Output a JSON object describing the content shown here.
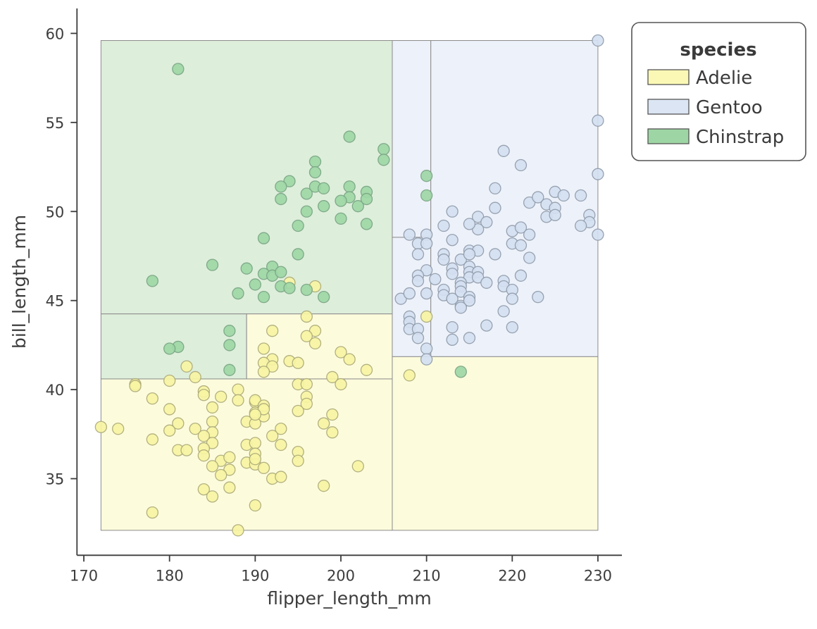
{
  "chart_data": {
    "type": "scatter",
    "title": "",
    "xlabel": "flipper_length_mm",
    "ylabel": "bill_length_mm",
    "xlim": [
      169.2,
      232.8
    ],
    "ylim": [
      30.7,
      61.4
    ],
    "x_ticks": [
      170,
      180,
      190,
      200,
      210,
      220,
      230
    ],
    "y_ticks": [
      35,
      40,
      45,
      50,
      55,
      60
    ],
    "grid": false,
    "axis_color": "#3d3d3d",
    "region_border_color": "#8c8c8c",
    "legend": {
      "title": "species",
      "position": "outside upper right",
      "items": [
        {
          "label": "Adelie",
          "color": "#fbf8b5"
        },
        {
          "label": "Gentoo",
          "color": "#dbe5f4"
        },
        {
          "label": "Chinstrap",
          "color": "#9dd6a4"
        }
      ]
    },
    "species_styles": {
      "Adelie": {
        "marker_fill": "#f7f4a3",
        "marker_stroke": "#aaa878",
        "region_fill": "#fcfbdc"
      },
      "Gentoo": {
        "marker_fill": "#d4e0f1",
        "marker_stroke": "#8e9aa9",
        "region_fill": "#edf1f9"
      },
      "Chinstrap": {
        "marker_fill": "#9ed7a6",
        "marker_stroke": "#78a383",
        "region_fill": "#ddeeda"
      }
    },
    "decision_splits": {
      "flipper_length_mm": [
        189,
        206,
        210.5
      ],
      "bill_length_mm": [
        40.6,
        41.85,
        44.25,
        48.55
      ]
    },
    "decision_regions": [
      {
        "species": "Chinstrap",
        "x0": 172,
        "x1": 206,
        "y0": 44.25,
        "y1": 59.6
      },
      {
        "species": "Chinstrap",
        "x0": 172,
        "x1": 189,
        "y0": 40.6,
        "y1": 44.25
      },
      {
        "species": "Adelie",
        "x0": 189,
        "x1": 206,
        "y0": 40.6,
        "y1": 44.25
      },
      {
        "species": "Adelie",
        "x0": 172,
        "x1": 206,
        "y0": 32.1,
        "y1": 40.6
      },
      {
        "species": "Gentoo",
        "x0": 206,
        "x1": 210.5,
        "y0": 48.55,
        "y1": 59.6
      },
      {
        "species": "Gentoo",
        "x0": 206,
        "x1": 210.5,
        "y0": 41.85,
        "y1": 48.55
      },
      {
        "species": "Gentoo",
        "x0": 210.5,
        "x1": 230,
        "y0": 41.85,
        "y1": 59.6
      },
      {
        "species": "Adelie",
        "x0": 206,
        "x1": 230,
        "y0": 32.1,
        "y1": 41.85
      }
    ],
    "series": [
      {
        "name": "Adelie",
        "points": [
          [
            194,
            46
          ],
          [
            197,
            45.8
          ],
          [
            196,
            44.1
          ],
          [
            210,
            44.1
          ],
          [
            192,
            43.3
          ],
          [
            197,
            43.3
          ],
          [
            196,
            43
          ],
          [
            197,
            42.6
          ],
          [
            191,
            42.3
          ],
          [
            200,
            42.1
          ],
          [
            201,
            41.7
          ],
          [
            192,
            41.7
          ],
          [
            191,
            41.5
          ],
          [
            192,
            41.3
          ],
          [
            191,
            41
          ],
          [
            194,
            41.6
          ],
          [
            195,
            41.5
          ],
          [
            203,
            41.1
          ],
          [
            182,
            41.3
          ],
          [
            183,
            40.7
          ],
          [
            180,
            40.5
          ],
          [
            176,
            40.3
          ],
          [
            199,
            40.7
          ],
          [
            200,
            40.3
          ],
          [
            208,
            40.8
          ],
          [
            176,
            40.2
          ],
          [
            178,
            39.5
          ],
          [
            174,
            37.8
          ],
          [
            172,
            37.9
          ],
          [
            180,
            38.9
          ],
          [
            181,
            38.1
          ],
          [
            180,
            37.7
          ],
          [
            183,
            37.8
          ],
          [
            178,
            37.2
          ],
          [
            184,
            39.9
          ],
          [
            184,
            39.7
          ],
          [
            186,
            39.6
          ],
          [
            185,
            39
          ],
          [
            188,
            40
          ],
          [
            188,
            39.4
          ],
          [
            190,
            39.3
          ],
          [
            190,
            38.7
          ],
          [
            191,
            38.5
          ],
          [
            189,
            38.2
          ],
          [
            190,
            38.1
          ],
          [
            185,
            38.2
          ],
          [
            185,
            37.6
          ],
          [
            184,
            37.4
          ],
          [
            185,
            37
          ],
          [
            181,
            36.6
          ],
          [
            182,
            36.6
          ],
          [
            184,
            36.7
          ],
          [
            184,
            36.3
          ],
          [
            186,
            36
          ],
          [
            187,
            36.2
          ],
          [
            187,
            35.5
          ],
          [
            185,
            35.7
          ],
          [
            186,
            35.2
          ],
          [
            187,
            34.5
          ],
          [
            184,
            34.4
          ],
          [
            185,
            34
          ],
          [
            190,
            33.5
          ],
          [
            178,
            33.1
          ],
          [
            188,
            32.1
          ],
          [
            189,
            36.9
          ],
          [
            190,
            37
          ],
          [
            190,
            36.4
          ],
          [
            189,
            35.9
          ],
          [
            190,
            35.8
          ],
          [
            195,
            40.3
          ],
          [
            196,
            40.3
          ],
          [
            196,
            39.6
          ],
          [
            196,
            39.2
          ],
          [
            195,
            38.8
          ],
          [
            190,
            39.4
          ],
          [
            191,
            39.1
          ],
          [
            191,
            38.9
          ],
          [
            190,
            38.6
          ],
          [
            193,
            37.8
          ],
          [
            192,
            37.4
          ],
          [
            193,
            36.9
          ],
          [
            198,
            38.1
          ],
          [
            199,
            38.6
          ],
          [
            199,
            37.6
          ],
          [
            190,
            36.1
          ],
          [
            191,
            35.6
          ],
          [
            192,
            35
          ],
          [
            193,
            35.1
          ],
          [
            195,
            36.5
          ],
          [
            195,
            36
          ],
          [
            202,
            35.7
          ],
          [
            198,
            34.6
          ]
        ]
      },
      {
        "name": "Gentoo",
        "points": [
          [
            230,
            59.6
          ],
          [
            230,
            55.1
          ],
          [
            230,
            52.1
          ],
          [
            230,
            48.7
          ],
          [
            219,
            53.4
          ],
          [
            221,
            52.6
          ],
          [
            218,
            51.3
          ],
          [
            225,
            51.1
          ],
          [
            226,
            50.9
          ],
          [
            228,
            50.9
          ],
          [
            222,
            50.5
          ],
          [
            223,
            50.8
          ],
          [
            224,
            50.4
          ],
          [
            225,
            50.2
          ],
          [
            218,
            50.2
          ],
          [
            229,
            49.8
          ],
          [
            229,
            49.4
          ],
          [
            228,
            49.2
          ],
          [
            224,
            49.7
          ],
          [
            225,
            49.8
          ],
          [
            216,
            49.7
          ],
          [
            217,
            49.4
          ],
          [
            216,
            49
          ],
          [
            215,
            49.3
          ],
          [
            213,
            50
          ],
          [
            212,
            49.2
          ],
          [
            213,
            48.4
          ],
          [
            208,
            48.7
          ],
          [
            210,
            48.7
          ],
          [
            209,
            48.2
          ],
          [
            210,
            48.2
          ],
          [
            209,
            47.6
          ],
          [
            212,
            47.6
          ],
          [
            212,
            47.3
          ],
          [
            214,
            47.3
          ],
          [
            220,
            48.9
          ],
          [
            221,
            49.1
          ],
          [
            222,
            48.7
          ],
          [
            220,
            48.2
          ],
          [
            221,
            48.1
          ],
          [
            215,
            47.8
          ],
          [
            216,
            47.8
          ],
          [
            215,
            47.6
          ],
          [
            218,
            47.6
          ],
          [
            222,
            47.4
          ],
          [
            215,
            46.9
          ],
          [
            215,
            46.6
          ],
          [
            216,
            46.6
          ],
          [
            215,
            46.3
          ],
          [
            216,
            46.3
          ],
          [
            217,
            46
          ],
          [
            214,
            46
          ],
          [
            213,
            46.8
          ],
          [
            221,
            46.4
          ],
          [
            219,
            46.1
          ],
          [
            210,
            46.7
          ],
          [
            209,
            46.4
          ],
          [
            211,
            46.2
          ],
          [
            213,
            46.5
          ],
          [
            209,
            46.1
          ],
          [
            212,
            45.6
          ],
          [
            212,
            45.3
          ],
          [
            207,
            45.1
          ],
          [
            208,
            45.4
          ],
          [
            210,
            45.4
          ],
          [
            213,
            45.1
          ],
          [
            214,
            44.7
          ],
          [
            208,
            44.1
          ],
          [
            208,
            43.8
          ],
          [
            208,
            43.4
          ],
          [
            209,
            43.4
          ],
          [
            209,
            42.9
          ],
          [
            213,
            43.5
          ],
          [
            213,
            42.8
          ],
          [
            210,
            42.3
          ],
          [
            210,
            41.7
          ],
          [
            214,
            45.8
          ],
          [
            214,
            45.5
          ],
          [
            215,
            45.2
          ],
          [
            215,
            45
          ],
          [
            214,
            44.6
          ],
          [
            219,
            45.8
          ],
          [
            220,
            45.6
          ],
          [
            220,
            45.1
          ],
          [
            223,
            45.2
          ],
          [
            219,
            44.4
          ],
          [
            217,
            43.6
          ],
          [
            220,
            43.5
          ],
          [
            215,
            42.9
          ]
        ]
      },
      {
        "name": "Chinstrap",
        "points": [
          [
            181,
            58
          ],
          [
            201,
            54.2
          ],
          [
            205,
            53.5
          ],
          [
            205,
            52.9
          ],
          [
            197,
            52.8
          ],
          [
            197,
            52.2
          ],
          [
            194,
            51.7
          ],
          [
            193,
            51.4
          ],
          [
            197,
            51.4
          ],
          [
            198,
            51.3
          ],
          [
            201,
            51.4
          ],
          [
            196,
            51
          ],
          [
            193,
            50.7
          ],
          [
            201,
            50.8
          ],
          [
            200,
            50.6
          ],
          [
            203,
            51.1
          ],
          [
            203,
            50.7
          ],
          [
            202,
            50.3
          ],
          [
            198,
            50.3
          ],
          [
            196,
            50
          ],
          [
            200,
            49.6
          ],
          [
            195,
            49.2
          ],
          [
            203,
            49.3
          ],
          [
            191,
            48.5
          ],
          [
            195,
            47.6
          ],
          [
            185,
            47
          ],
          [
            178,
            46.1
          ],
          [
            189,
            46.8
          ],
          [
            192,
            46.9
          ],
          [
            191,
            46.5
          ],
          [
            192,
            46.4
          ],
          [
            193,
            46.6
          ],
          [
            190,
            45.9
          ],
          [
            188,
            45.4
          ],
          [
            191,
            45.2
          ],
          [
            193,
            45.8
          ],
          [
            194,
            45.7
          ],
          [
            196,
            45.6
          ],
          [
            198,
            45.2
          ],
          [
            187,
            43.3
          ],
          [
            187,
            42.5
          ],
          [
            181,
            42.4
          ],
          [
            180,
            42.3
          ],
          [
            187,
            41.1
          ],
          [
            210,
            52
          ],
          [
            210,
            50.9
          ],
          [
            214,
            41
          ]
        ]
      }
    ]
  }
}
